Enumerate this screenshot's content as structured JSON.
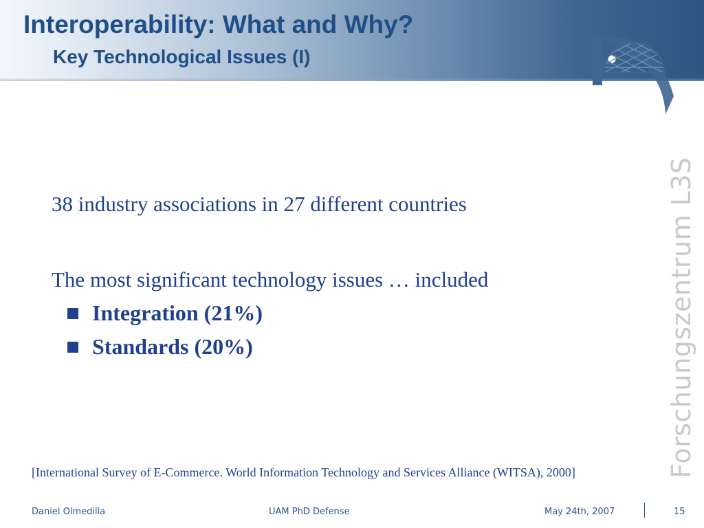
{
  "slide": {
    "title": "Interoperability: What and Why?",
    "subtitle": "Key Technological Issues (I)"
  },
  "brand": {
    "vertical_text": "Forschungszentrum L3S",
    "logo_icon": "l3s-dome-logo-icon"
  },
  "body": {
    "line1": "38 industry associations in 27 different countries",
    "line2": "The most significant technology issues … included",
    "bullets": [
      {
        "label": "Integration (21%)"
      },
      {
        "label": "Standards (20%)"
      }
    ]
  },
  "citation": "[International Survey of E-Commerce. World Information Technology and Services Alliance (WITSA), 2000]",
  "footer": {
    "author": "Daniel Olmedilla",
    "event": "UAM PhD Defense",
    "date": "May 24th, 2007",
    "page_number": "15"
  },
  "colors": {
    "title": "#1f4f86",
    "body_text": "#1f3f8f",
    "footer_text": "#2a5590",
    "brand_gray": "#c9c9cc"
  }
}
